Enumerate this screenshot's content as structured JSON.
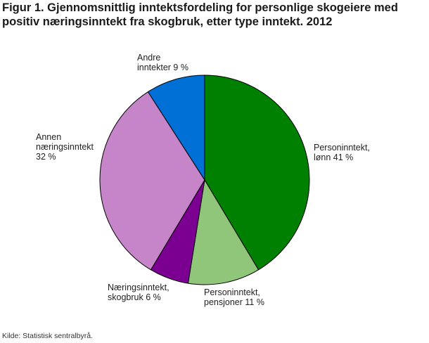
{
  "chart_data": {
    "type": "pie",
    "title_lines": [
      "Figur 1. Gjennomsnittlig inntektsfordeling for personlige skogeiere med",
      "positiv næringsinntekt fra skogbruk, etter type inntekt. 2012"
    ],
    "start_angle_deg": 0,
    "direction": "clockwise",
    "slices": [
      {
        "label_lines": [
          "Personinntekt,",
          "lønn 41 %"
        ],
        "value": 41,
        "color": "#008000"
      },
      {
        "label_lines": [
          "Personinntekt,",
          "pensjoner 11 %"
        ],
        "value": 11,
        "color": "#90c67a"
      },
      {
        "label_lines": [
          "Næringsinntekt,",
          "skogbruk 6 %"
        ],
        "value": 6,
        "color": "#7b0091"
      },
      {
        "label_lines": [
          "Annen",
          "næringsinntekt",
          "32 %"
        ],
        "value": 32,
        "color": "#c684c9"
      },
      {
        "label_lines": [
          "Andre",
          "inntekter 9 %"
        ],
        "value": 9,
        "color": "#006fd6"
      }
    ]
  },
  "source": "Kilde: Statistisk sentralbyrå."
}
